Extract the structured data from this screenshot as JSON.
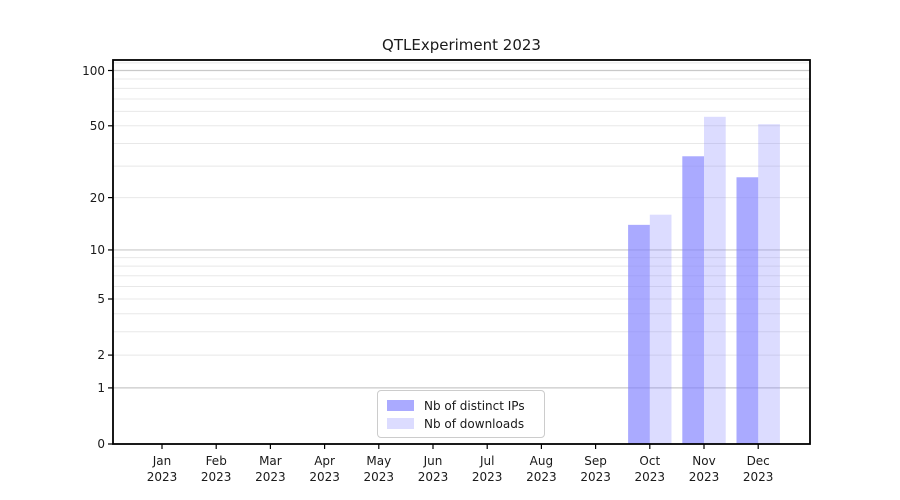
{
  "title": "QTLExperiment 2023",
  "chart_data": {
    "type": "bar",
    "title": "QTLExperiment 2023",
    "categories": [
      "Jan",
      "Feb",
      "Mar",
      "Apr",
      "May",
      "Jun",
      "Jul",
      "Aug",
      "Sep",
      "Oct",
      "Nov",
      "Dec"
    ],
    "category_year_line": "2023",
    "series": [
      {
        "name": "Nb of distinct IPs",
        "color": "rgba(128,128,255,0.67)",
        "values": [
          0,
          0,
          0,
          0,
          0,
          0,
          0,
          0,
          0,
          14,
          34,
          26
        ]
      },
      {
        "name": "Nb of downloads",
        "color": "rgba(128,128,255,0.28)",
        "values": [
          0,
          0,
          0,
          0,
          0,
          0,
          0,
          0,
          0,
          16,
          56,
          51
        ]
      }
    ],
    "xlabel": "",
    "ylabel": "",
    "yscale": "log1p",
    "ylim": [
      0,
      114
    ],
    "yticks": [
      0,
      1,
      2,
      5,
      10,
      20,
      50,
      100
    ],
    "grid": {
      "shown": true,
      "major_values": [
        1,
        10,
        100
      ],
      "minor_values": [
        2,
        3,
        4,
        5,
        6,
        7,
        8,
        9,
        20,
        30,
        40,
        50,
        60,
        70,
        80,
        90,
        110
      ],
      "major_color": "#c9c9c9",
      "minor_color": "#e8e8e8"
    },
    "legend_position": "lower center",
    "frame_color": "#000000"
  }
}
